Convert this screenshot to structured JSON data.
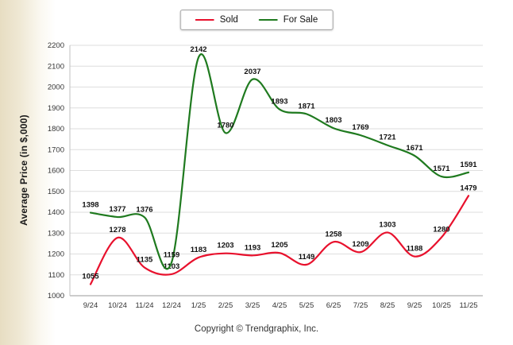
{
  "chart_data": {
    "type": "line",
    "title": "",
    "categories": [
      "9/24",
      "10/24",
      "11/24",
      "12/24",
      "1/25",
      "2/25",
      "3/25",
      "4/25",
      "5/25",
      "6/25",
      "7/25",
      "8/25",
      "9/25",
      "10/25",
      "11/25"
    ],
    "series": [
      {
        "name": "Sold",
        "color": "#e8112d",
        "values": [
          1055,
          1278,
          1135,
          1103,
          1183,
          1203,
          1193,
          1205,
          1149,
          1258,
          1209,
          1303,
          1188,
          1280,
          1479
        ]
      },
      {
        "name": "For Sale",
        "color": "#1f7a1f",
        "values": [
          1398,
          1377,
          1376,
          1159,
          2142,
          1780,
          2037,
          1893,
          1871,
          1803,
          1769,
          1721,
          1671,
          1571,
          1591
        ]
      }
    ],
    "xlabel": "",
    "ylabel": "Average Price (in $,000)",
    "ylim": [
      1000,
      2200
    ],
    "ytick_step": 100,
    "grid": true,
    "legend_position": "top-center"
  },
  "legend": {
    "items": [
      {
        "label": "Sold",
        "color": "#e8112d"
      },
      {
        "label": "For Sale",
        "color": "#1f7a1f"
      }
    ]
  },
  "footer": {
    "copyright": "Copyright © Trendgraphix, Inc."
  }
}
